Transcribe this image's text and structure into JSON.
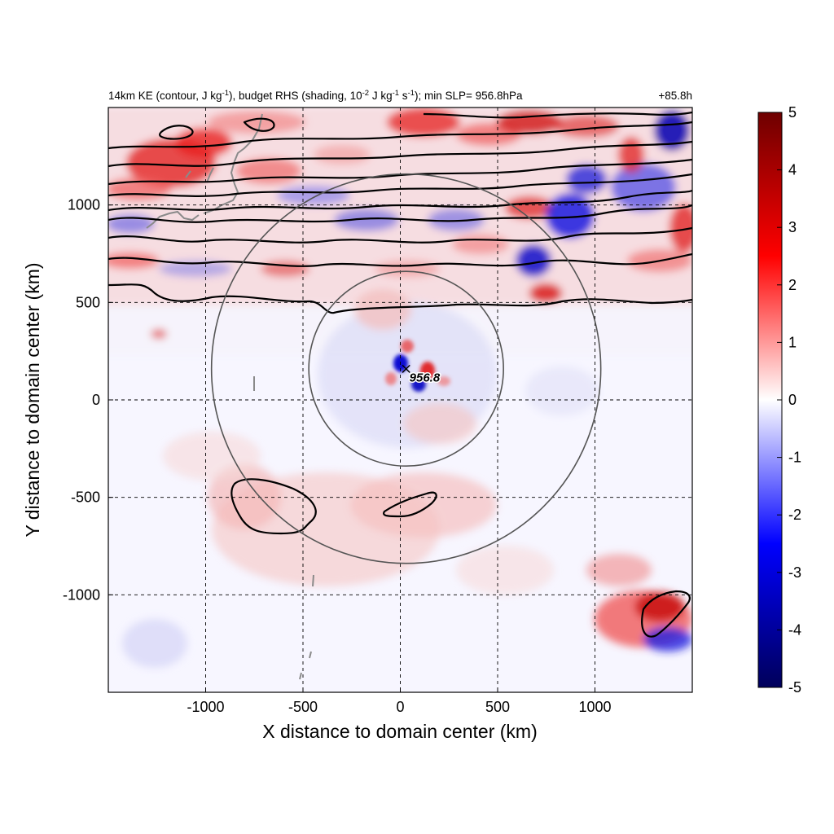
{
  "chart_data": {
    "type": "heatmap",
    "title": "14km KE (contour, J kg-1), budget RHS (shading, 10-2 J kg-1 s-1); min SLP= 956.8hPa",
    "title_parts": {
      "pre": "14km KE (contour, J kg",
      "sup1": "-1",
      "mid1": "), budget RHS (shading, 10",
      "sup2": "-2",
      "mid2": " J kg",
      "sup3": "-1",
      "mid3": " s",
      "sup4": "-1",
      "post": "); min SLP= 956.8hPa"
    },
    "forecast_hour": "+85.8h",
    "xlabel": "X distance to domain center (km)",
    "ylabel": "Y distance to domain center (km)",
    "xlim": [
      -1500,
      1500
    ],
    "ylim": [
      -1500,
      1500
    ],
    "xticks": [
      -1000,
      -500,
      0,
      500,
      1000
    ],
    "yticks": [
      -1000,
      -500,
      0,
      500,
      1000
    ],
    "xtick_labels": [
      "-1000",
      "-500",
      "0",
      "500",
      "1000"
    ],
    "ytick_labels": [
      "-1000",
      "-500",
      "0",
      "500",
      "1000"
    ],
    "grid": true,
    "colorbar": {
      "vmin": -5,
      "vmax": 5,
      "ticks": [
        5,
        4,
        3,
        2,
        1,
        0,
        -1,
        -2,
        -3,
        -4,
        -5
      ],
      "tick_labels": [
        "5",
        "4",
        "3",
        "2",
        "1",
        "0",
        "-1",
        "-2",
        "-3",
        "-4",
        "-5"
      ],
      "colors": [
        "#00005a",
        "#0000ff",
        "#ffffff",
        "#ff0000",
        "#6e0000"
      ]
    },
    "storm_center": {
      "x": 30,
      "y": 160,
      "label": "956.8",
      "marker": "×"
    },
    "rings": [
      {
        "center_x": 30,
        "center_y": 160,
        "radius_km": 500
      },
      {
        "center_x": 30,
        "center_y": 160,
        "radius_km": 1000
      }
    ]
  }
}
